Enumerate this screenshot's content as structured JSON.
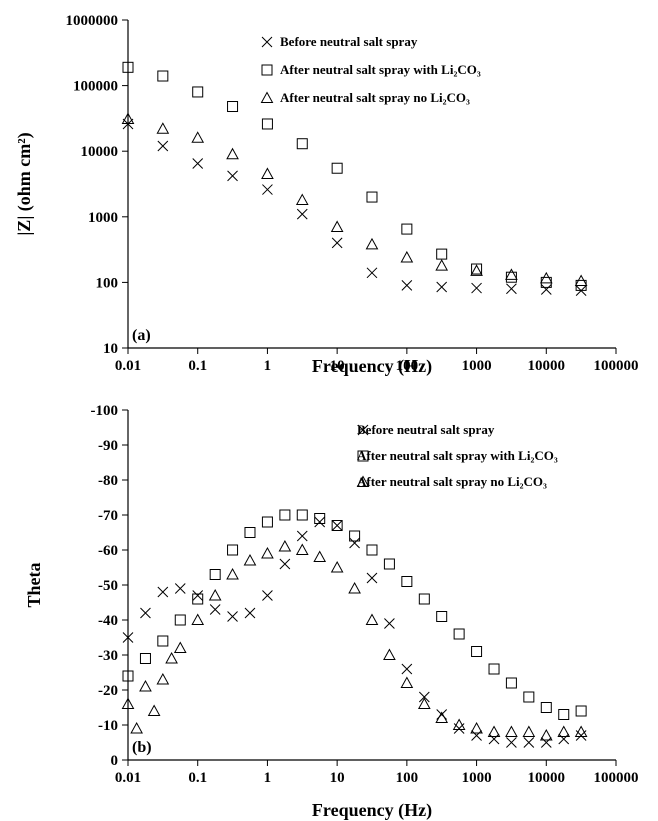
{
  "chart_data": [
    {
      "type": "scatter",
      "panel_label": "(a)",
      "xlabel": "Frequency (Hz)",
      "ylabel": "|Z| (ohm cm²)",
      "x_scale": "log",
      "y_scale": "log",
      "xlim": [
        0.01,
        100000
      ],
      "ylim": [
        10,
        1000000
      ],
      "x_ticks": [
        "0.01",
        "0.1",
        "1",
        "10",
        "100",
        "1000",
        "10000",
        "100000"
      ],
      "y_ticks": [
        "10",
        "100",
        "1000",
        "10000",
        "100000",
        "1000000"
      ],
      "legend_position": "top-right",
      "series": [
        {
          "name": "Before neutral salt spray",
          "marker": "x",
          "x": [
            0.01,
            0.0316,
            0.1,
            0.316,
            1,
            3.16,
            10,
            31.6,
            100,
            316,
            1000,
            3160,
            10000,
            31600
          ],
          "y": [
            26000,
            12000,
            6500,
            4200,
            2600,
            1100,
            400,
            140,
            90,
            85,
            82,
            80,
            78,
            75
          ]
        },
        {
          "name": "After neutral salt spray with Li₂CO₃",
          "marker": "square",
          "x": [
            0.01,
            0.0316,
            0.1,
            0.316,
            1,
            3.16,
            10,
            31.6,
            100,
            316,
            1000,
            3160,
            10000,
            31600
          ],
          "y": [
            190000,
            140000,
            80000,
            48000,
            26000,
            13000,
            5500,
            2000,
            650,
            270,
            160,
            120,
            100,
            90
          ]
        },
        {
          "name": "After neutral salt spray no Li₂CO₃",
          "marker": "triangle",
          "x": [
            0.01,
            0.0316,
            0.1,
            0.316,
            1,
            3.16,
            10,
            31.6,
            100,
            316,
            1000,
            3160,
            10000,
            31600
          ],
          "y": [
            31000,
            22000,
            16000,
            9000,
            4500,
            1800,
            700,
            380,
            240,
            180,
            150,
            130,
            115,
            105
          ]
        }
      ]
    },
    {
      "type": "scatter",
      "panel_label": "(b)",
      "xlabel": "Frequency (Hz)",
      "ylabel": "Theta",
      "x_scale": "log",
      "xlim": [
        0.01,
        100000
      ],
      "ylim": [
        0,
        -100
      ],
      "x_ticks": [
        "0.01",
        "0.1",
        "1",
        "10",
        "100",
        "1000",
        "10000",
        "100000"
      ],
      "y_ticks": [
        "0",
        "-10",
        "-20",
        "-30",
        "-40",
        "-50",
        "-60",
        "-70",
        "-80",
        "-90",
        "-100"
      ],
      "legend_position": "top-right",
      "series": [
        {
          "name": "Before neutral salt spray",
          "marker": "x",
          "x": [
            0.01,
            0.0178,
            0.0316,
            0.0562,
            0.1,
            0.178,
            0.316,
            0.562,
            1,
            1.78,
            3.16,
            5.62,
            10,
            17.8,
            31.6,
            56.2,
            100,
            178,
            316,
            562,
            1000,
            1780,
            3160,
            5620,
            10000,
            17800,
            31600
          ],
          "y": [
            -35,
            -42,
            -48,
            -49,
            -47,
            -43,
            -41,
            -42,
            -47,
            -56,
            -64,
            -68,
            -67,
            -62,
            -52,
            -39,
            -26,
            -18,
            -13,
            -9,
            -7,
            -6,
            -5,
            -5,
            -5,
            -6,
            -7
          ]
        },
        {
          "name": "After neutral salt spray with Li₂CO₃",
          "marker": "square",
          "x": [
            0.01,
            0.0178,
            0.0316,
            0.0562,
            0.1,
            0.178,
            0.316,
            0.562,
            1,
            1.78,
            3.16,
            5.62,
            10,
            17.8,
            31.6,
            56.2,
            100,
            178,
            316,
            562,
            1000,
            1780,
            3160,
            5620,
            10000,
            17800,
            31600
          ],
          "y": [
            -24,
            -29,
            -34,
            -40,
            -46,
            -53,
            -60,
            -65,
            -68,
            -70,
            -70,
            -69,
            -67,
            -64,
            -60,
            -56,
            -51,
            -46,
            -41,
            -36,
            -31,
            -26,
            -22,
            -18,
            -15,
            -13,
            -14
          ]
        },
        {
          "name": "After neutral salt spray no Li₂CO₃",
          "marker": "triangle",
          "x": [
            0.01,
            0.0133,
            0.0178,
            0.0237,
            0.0316,
            0.0422,
            0.0562,
            0.1,
            0.178,
            0.316,
            0.562,
            1,
            1.78,
            3.16,
            5.62,
            10,
            17.8,
            31.6,
            56.2,
            100,
            178,
            316,
            562,
            1000,
            1780,
            3160,
            5620,
            10000,
            17800,
            31600
          ],
          "y": [
            -16,
            -9,
            -21,
            -14,
            -23,
            -29,
            -32,
            -40,
            -47,
            -53,
            -57,
            -59,
            -61,
            -60,
            -58,
            -55,
            -49,
            -40,
            -30,
            -22,
            -16,
            -12,
            -10,
            -9,
            -8,
            -8,
            -8,
            -7,
            -8,
            -8
          ]
        }
      ]
    }
  ]
}
